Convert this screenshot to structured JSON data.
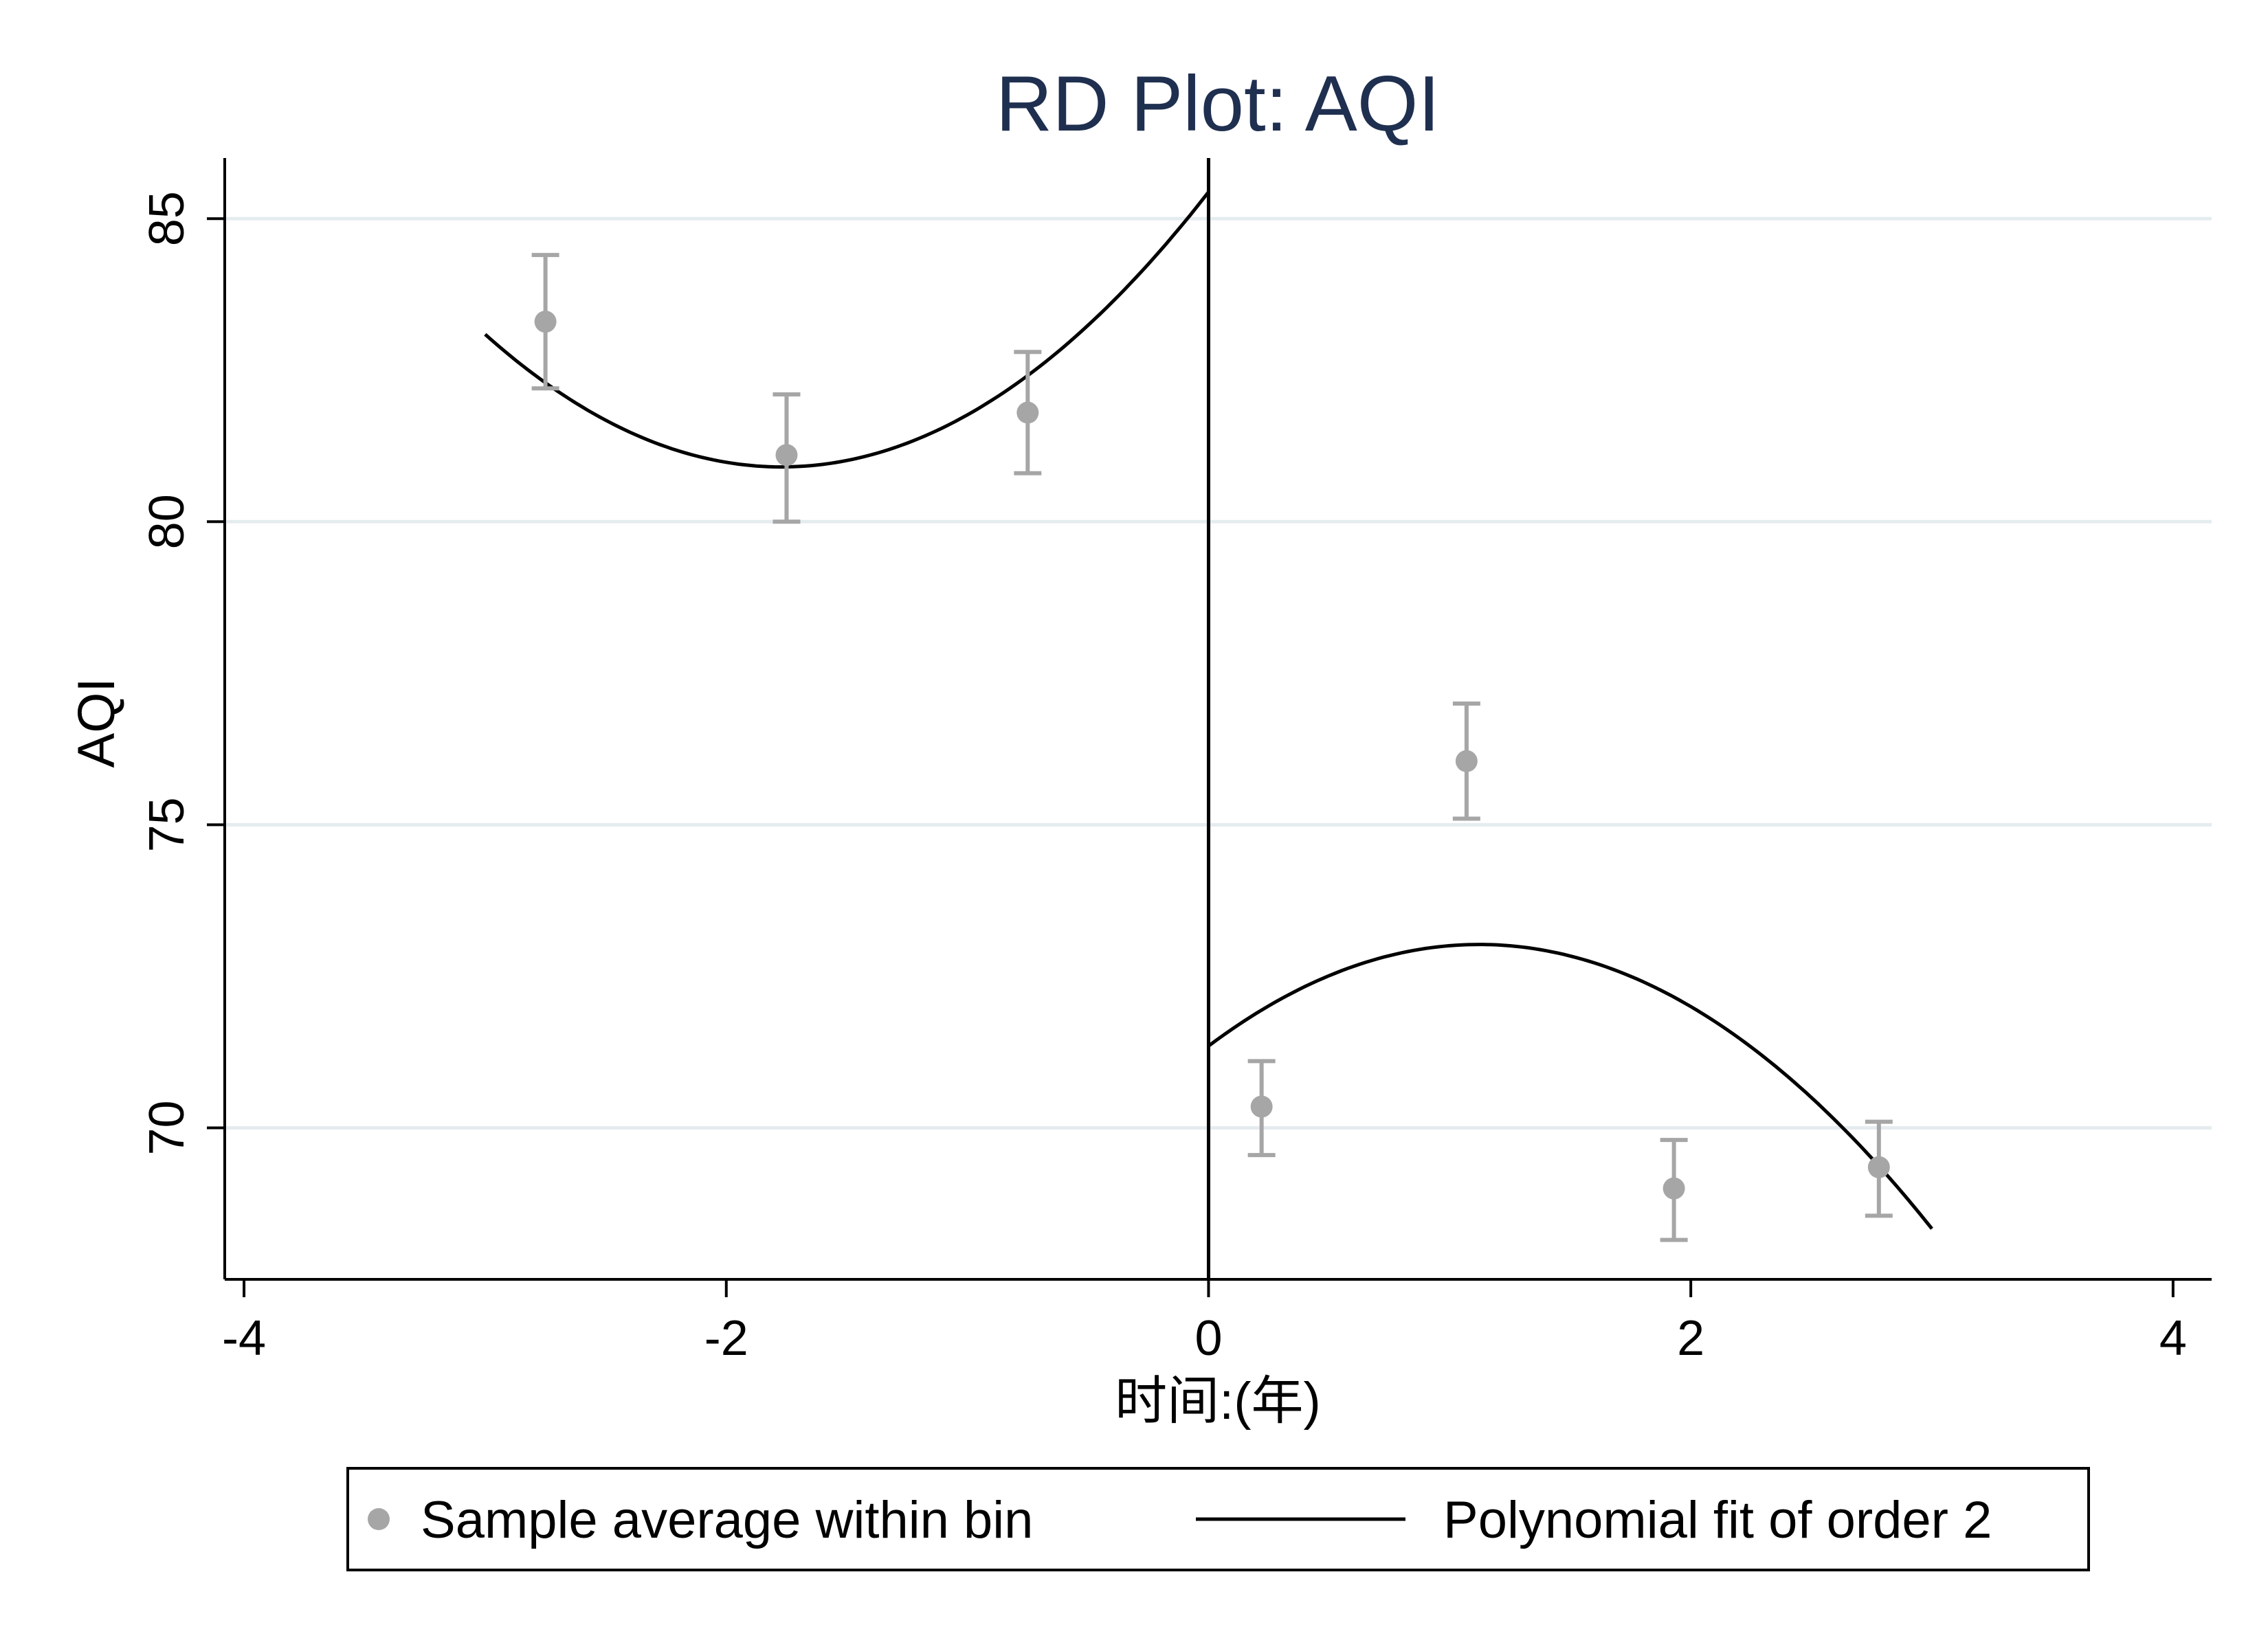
{
  "chart_data": {
    "type": "scatter",
    "title": "RD Plot: AQI",
    "xlabel": "时间:(年)",
    "ylabel": "AQI",
    "xlim": [
      -4.08,
      4.16
    ],
    "ylim": [
      67.5,
      86.0
    ],
    "xticks": [
      -4,
      -2,
      0,
      2,
      4
    ],
    "xtick_labels": [
      "-4",
      "-2",
      "0",
      "2",
      "4"
    ],
    "yticks": [
      70,
      75,
      80,
      85
    ],
    "ytick_labels": [
      "70",
      "75",
      "80",
      "85"
    ],
    "grid": "horizontal",
    "cutoff": 0,
    "series": [
      {
        "name": "Sample average within bin",
        "kind": "points_with_errorbars",
        "color": "#a6a6a6",
        "points": [
          {
            "x": -2.75,
            "y": 83.3,
            "lo": 82.2,
            "hi": 84.4
          },
          {
            "x": -1.75,
            "y": 81.1,
            "lo": 80.0,
            "hi": 82.1
          },
          {
            "x": -0.75,
            "y": 81.8,
            "lo": 80.8,
            "hi": 82.8
          },
          {
            "x": 0.22,
            "y": 70.35,
            "lo": 69.55,
            "hi": 71.1
          },
          {
            "x": 1.07,
            "y": 76.05,
            "lo": 75.1,
            "hi": 77.0
          },
          {
            "x": 1.93,
            "y": 69.0,
            "lo": 68.15,
            "hi": 69.8
          },
          {
            "x": 2.78,
            "y": 69.35,
            "lo": 68.55,
            "hi": 70.1
          }
        ]
      },
      {
        "name": "Polynomial fit of order 2",
        "kind": "line",
        "color": "#000000",
        "segments": [
          {
            "xmin": -3.0,
            "xmax": 0.0,
            "a": 85.44,
            "b": 5.124,
            "c": 1.447
          },
          {
            "xmin": 0.0,
            "xmax": 3.0,
            "a": 71.35,
            "b": 2.985,
            "c": -1.33
          }
        ]
      }
    ],
    "legend": {
      "position": "bottom",
      "entries": [
        "Sample average within bin",
        "Polynomial fit of order 2"
      ]
    }
  }
}
